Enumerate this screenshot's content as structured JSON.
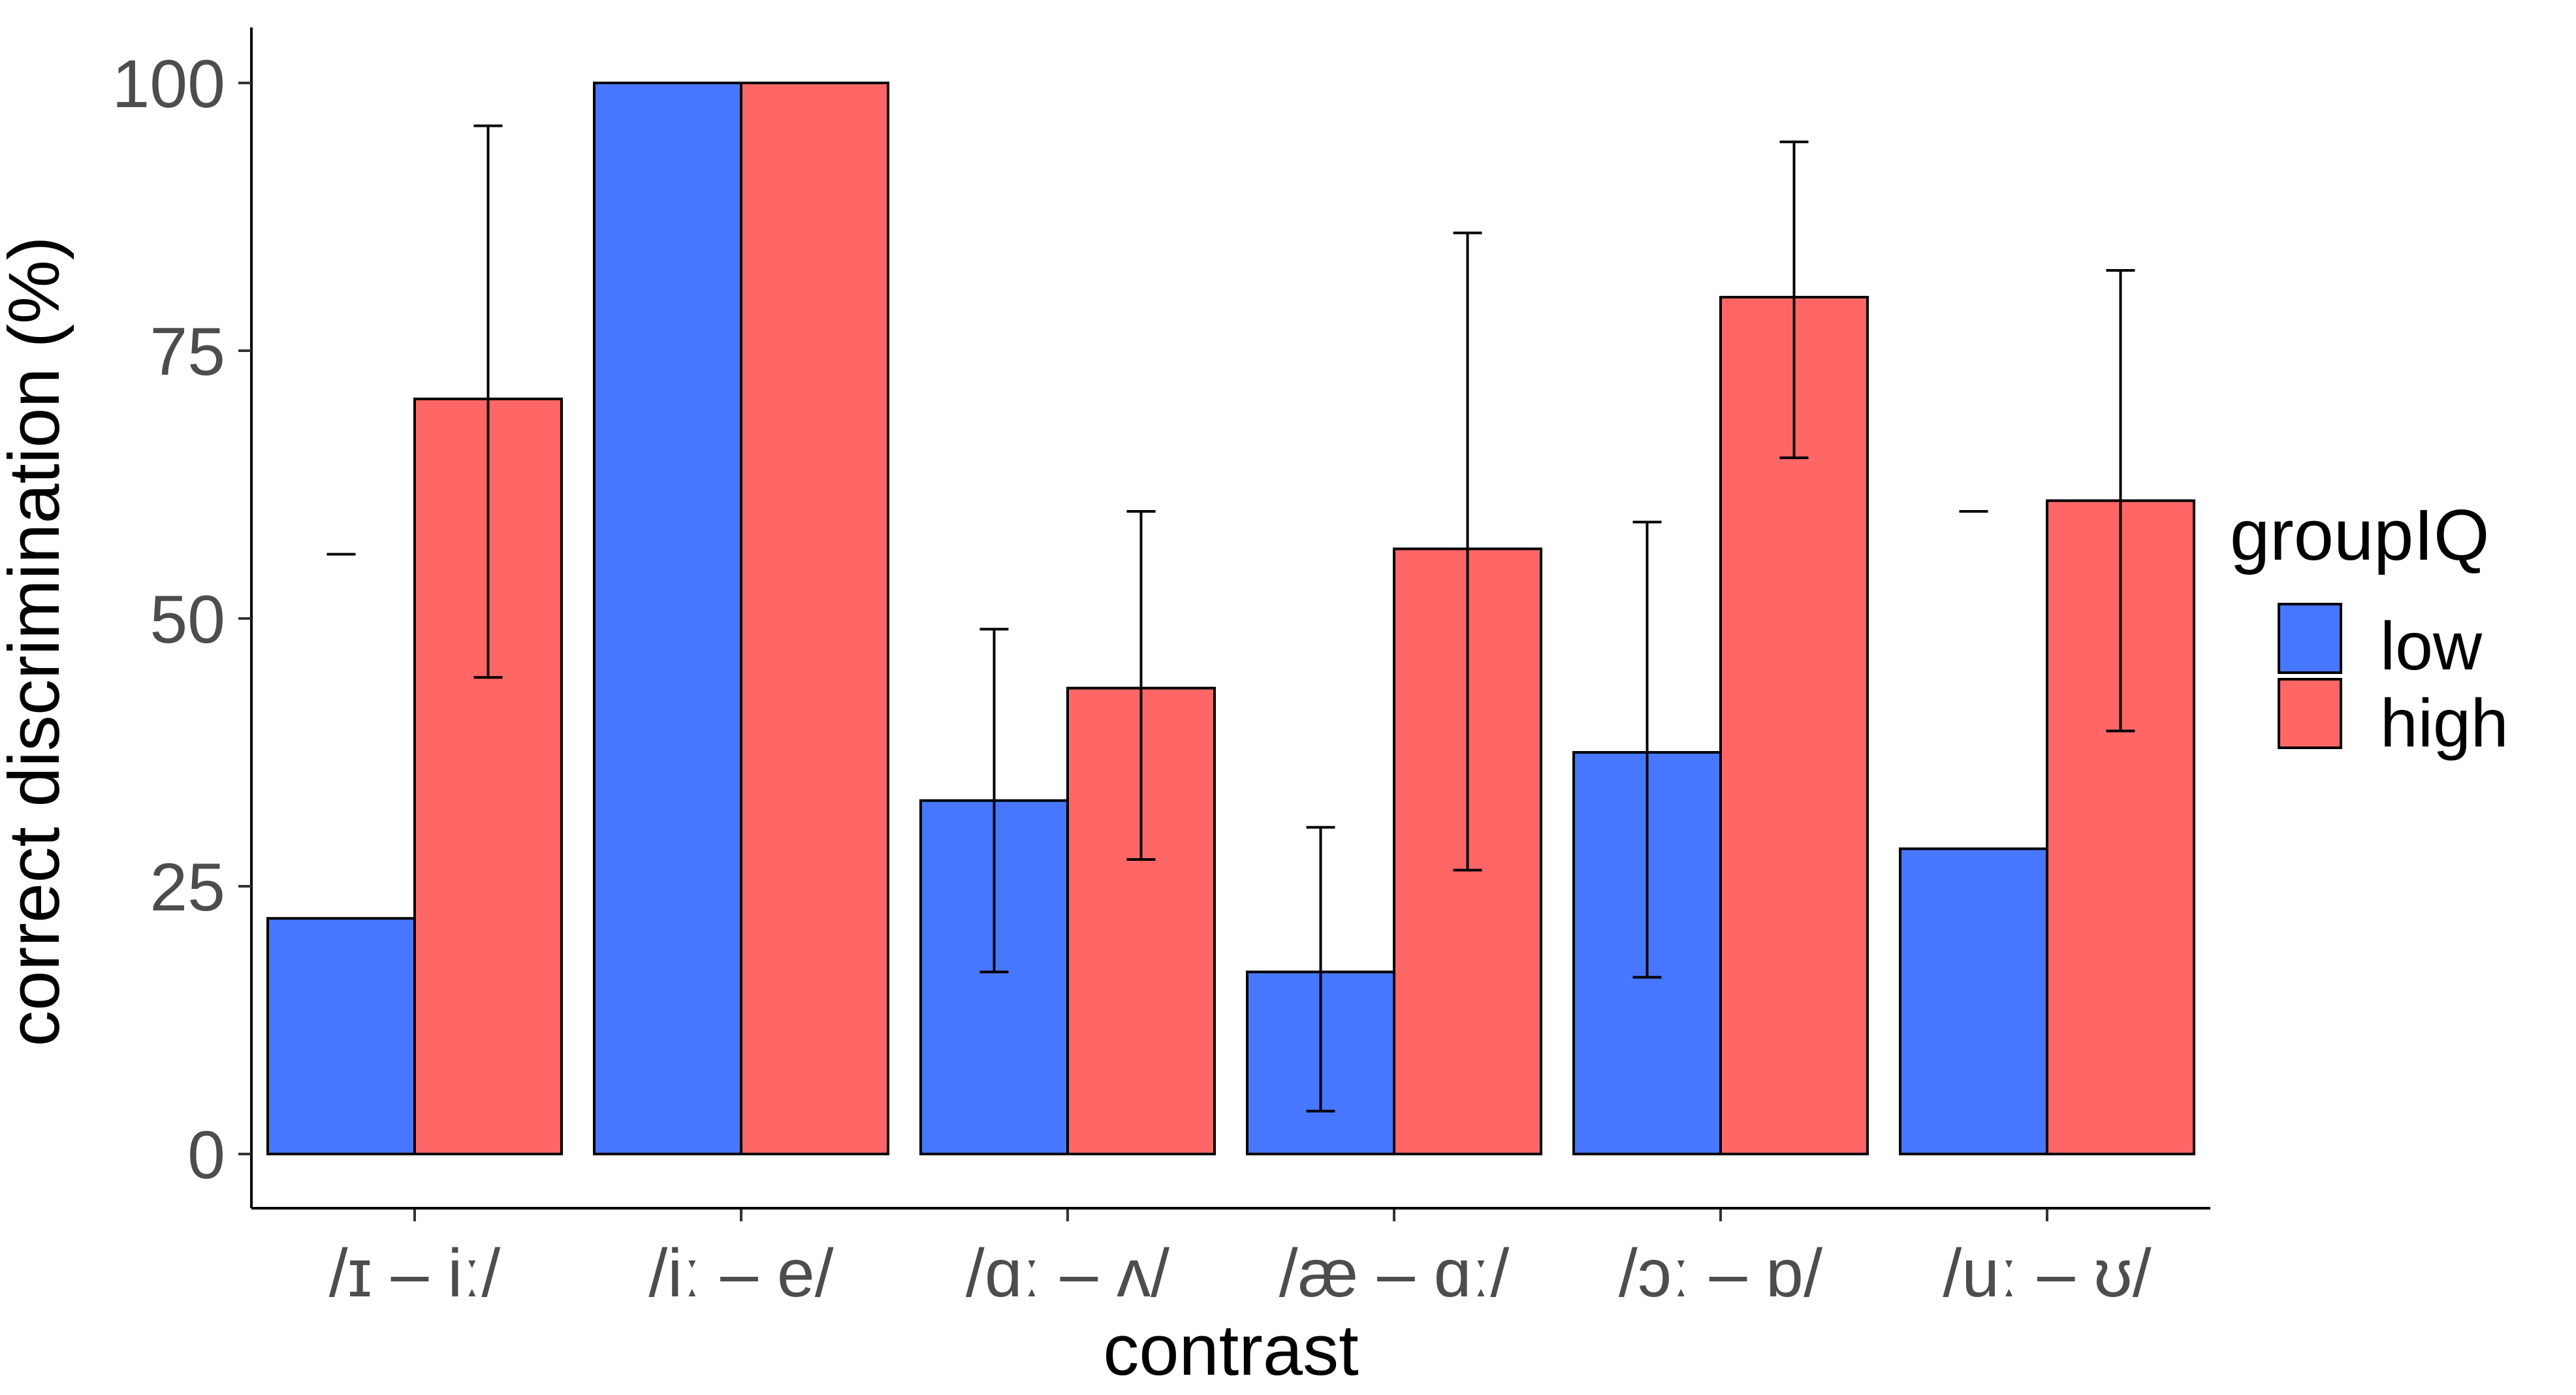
{
  "chart_data": {
    "type": "bar",
    "title": "",
    "xlabel": "contrast",
    "ylabel": "correct discrimination (%)",
    "ylim": [
      0,
      100
    ],
    "yticks": [
      0,
      25,
      50,
      75,
      100
    ],
    "categories": [
      "/ɪ – iː/",
      "/iː – e/",
      "/ɑː – ʌ/",
      "/æ – ɑː/",
      "/ɔː – ɒ/",
      "/uː – ʊ/"
    ],
    "series": [
      {
        "name": "low",
        "color": "#4877FF",
        "values": [
          22,
          100,
          33,
          17,
          37.5,
          28.5
        ],
        "error_low": [
          null,
          null,
          17,
          4,
          16.5,
          null
        ],
        "error_high": [
          56,
          null,
          49,
          30.5,
          59,
          60
        ]
      },
      {
        "name": "high",
        "color": "#FF6766",
        "values": [
          70.5,
          100,
          43.5,
          56.5,
          80,
          61
        ],
        "error_low": [
          44.5,
          null,
          27.5,
          26.5,
          65,
          39.5
        ],
        "error_high": [
          96,
          null,
          60,
          86,
          94.5,
          82.5
        ]
      }
    ],
    "legend": {
      "title": "groupIQ",
      "position": "right"
    },
    "grid": false
  }
}
